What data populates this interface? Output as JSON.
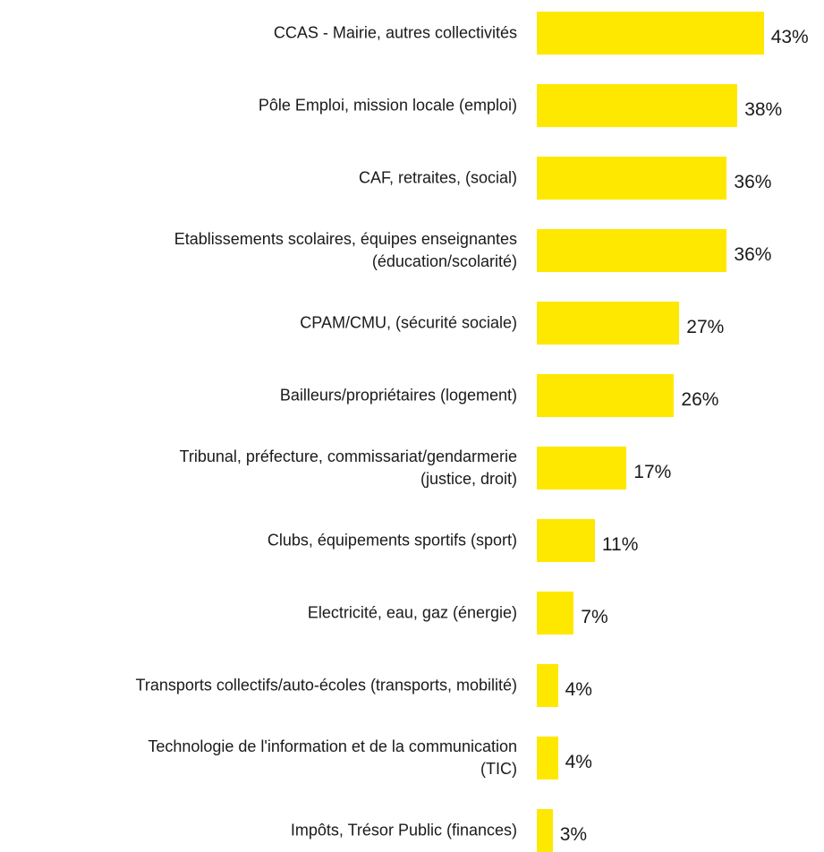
{
  "chart_data": {
    "type": "bar",
    "orientation": "horizontal",
    "color": "#ffe800",
    "categories": [
      "CCAS - Mairie, autres collectivités",
      "Pôle Emploi, mission locale (emploi)",
      "CAF, retraites, (social)",
      "Etablissements scolaires, équipes enseignantes\n(éducation/scolarité)",
      "CPAM/CMU, (sécurité sociale)",
      "Bailleurs/propriétaires (logement)",
      "Tribunal, préfecture, commissariat/gendarmerie\n(justice, droit)",
      "Clubs, équipements sportifs (sport)",
      "Electricité, eau, gaz (énergie)",
      "Transports collectifs/auto-écoles (transports, mobilité)",
      "Technologie de l'information et de la communication\n(TIC)",
      "Impôts, Trésor Public (finances)"
    ],
    "values": [
      43,
      38,
      36,
      36,
      27,
      26,
      17,
      11,
      7,
      4,
      4,
      3
    ],
    "value_labels": [
      "43%",
      "38%",
      "36%",
      "36%",
      "27%",
      "26%",
      "17%",
      "11%",
      "7%",
      "4%",
      "4%",
      "3%"
    ]
  }
}
